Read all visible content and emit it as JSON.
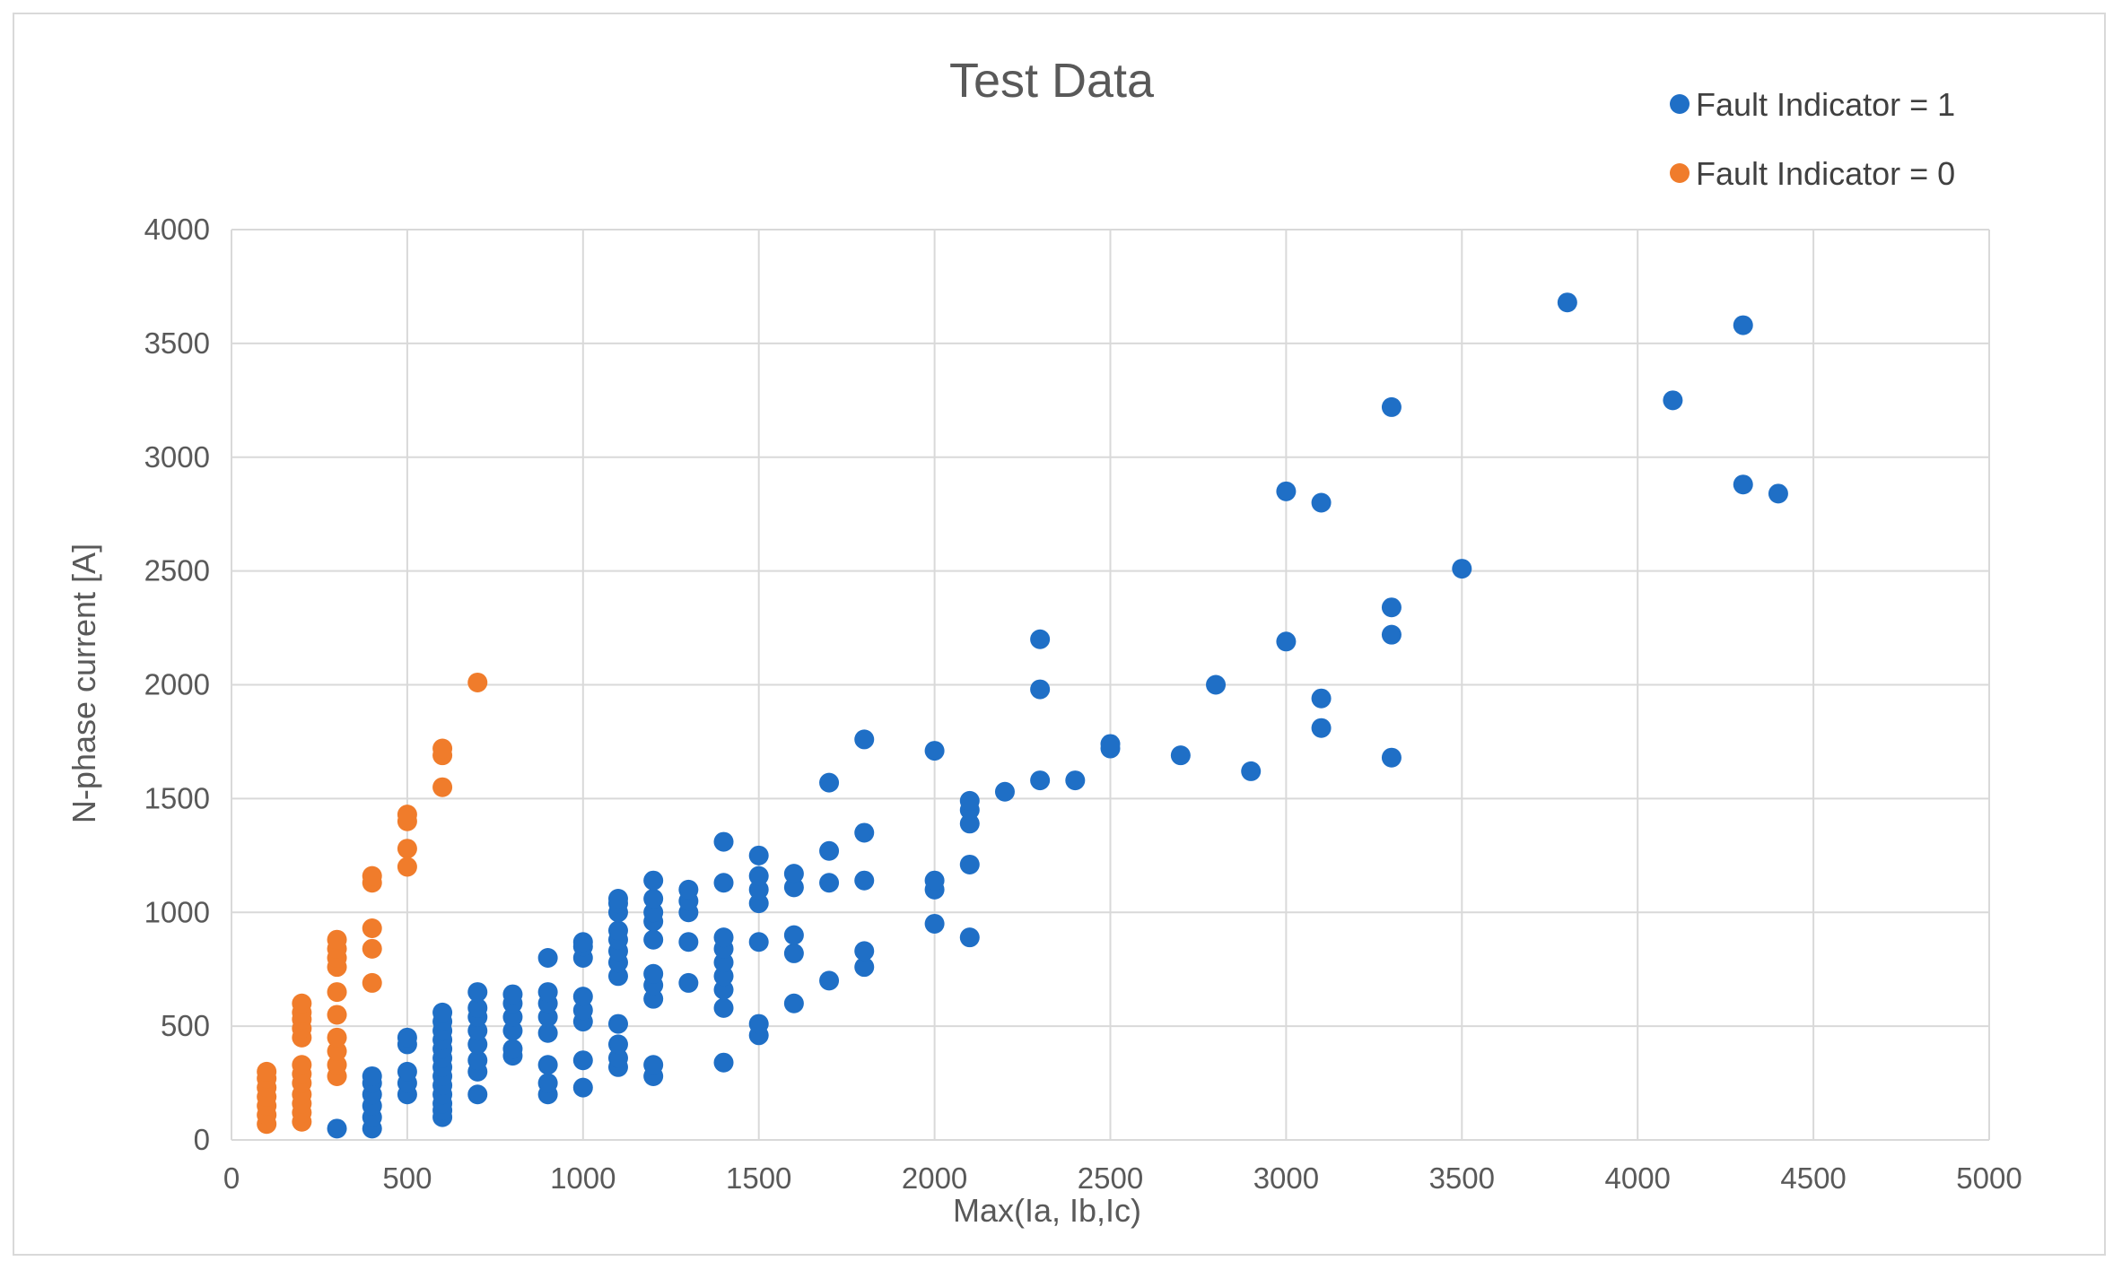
{
  "chart_data": {
    "type": "scatter",
    "title": "Test Data",
    "xlabel": "Max(Ia, Ib,Ic)",
    "ylabel": "N-phase current [A]",
    "xlim": [
      0,
      5000
    ],
    "ylim": [
      0,
      4000
    ],
    "x_ticks": [
      "0",
      "500",
      "1000",
      "1500",
      "2000",
      "2500",
      "3000",
      "3500",
      "4000",
      "4500",
      "5000"
    ],
    "y_ticks": [
      "0",
      "500",
      "1000",
      "1500",
      "2000",
      "2500",
      "3000",
      "3500",
      "4000"
    ],
    "grid": true,
    "legend_position": "top-right",
    "series": [
      {
        "name": "Fault Indicator = 1",
        "color": "#1f6fc6",
        "points": [
          [
            300,
            50
          ],
          [
            400,
            50
          ],
          [
            400,
            100
          ],
          [
            400,
            150
          ],
          [
            400,
            200
          ],
          [
            400,
            250
          ],
          [
            400,
            280
          ],
          [
            500,
            200
          ],
          [
            500,
            250
          ],
          [
            500,
            300
          ],
          [
            500,
            420
          ],
          [
            500,
            450
          ],
          [
            600,
            100
          ],
          [
            600,
            130
          ],
          [
            600,
            160
          ],
          [
            600,
            200
          ],
          [
            600,
            240
          ],
          [
            600,
            280
          ],
          [
            600,
            320
          ],
          [
            600,
            360
          ],
          [
            600,
            400
          ],
          [
            600,
            440
          ],
          [
            600,
            480
          ],
          [
            600,
            520
          ],
          [
            600,
            560
          ],
          [
            700,
            200
          ],
          [
            700,
            300
          ],
          [
            700,
            350
          ],
          [
            700,
            420
          ],
          [
            700,
            480
          ],
          [
            700,
            540
          ],
          [
            700,
            580
          ],
          [
            700,
            650
          ],
          [
            800,
            370
          ],
          [
            800,
            400
          ],
          [
            800,
            480
          ],
          [
            800,
            540
          ],
          [
            800,
            600
          ],
          [
            800,
            640
          ],
          [
            900,
            200
          ],
          [
            900,
            250
          ],
          [
            900,
            330
          ],
          [
            900,
            470
          ],
          [
            900,
            540
          ],
          [
            900,
            600
          ],
          [
            900,
            650
          ],
          [
            900,
            800
          ],
          [
            1000,
            230
          ],
          [
            1000,
            350
          ],
          [
            1000,
            520
          ],
          [
            1000,
            570
          ],
          [
            1000,
            630
          ],
          [
            1000,
            800
          ],
          [
            1000,
            850
          ],
          [
            1000,
            870
          ],
          [
            1100,
            320
          ],
          [
            1100,
            360
          ],
          [
            1100,
            420
          ],
          [
            1100,
            510
          ],
          [
            1100,
            720
          ],
          [
            1100,
            780
          ],
          [
            1100,
            830
          ],
          [
            1100,
            880
          ],
          [
            1100,
            920
          ],
          [
            1100,
            1000
          ],
          [
            1100,
            1040
          ],
          [
            1100,
            1060
          ],
          [
            1200,
            280
          ],
          [
            1200,
            330
          ],
          [
            1200,
            620
          ],
          [
            1200,
            680
          ],
          [
            1200,
            730
          ],
          [
            1200,
            880
          ],
          [
            1200,
            960
          ],
          [
            1200,
            1000
          ],
          [
            1200,
            1060
          ],
          [
            1200,
            1140
          ],
          [
            1300,
            690
          ],
          [
            1300,
            870
          ],
          [
            1300,
            1000
          ],
          [
            1300,
            1050
          ],
          [
            1300,
            1100
          ],
          [
            1400,
            340
          ],
          [
            1400,
            580
          ],
          [
            1400,
            660
          ],
          [
            1400,
            720
          ],
          [
            1400,
            780
          ],
          [
            1400,
            840
          ],
          [
            1400,
            890
          ],
          [
            1400,
            1130
          ],
          [
            1400,
            1310
          ],
          [
            1500,
            460
          ],
          [
            1500,
            510
          ],
          [
            1500,
            870
          ],
          [
            1500,
            1040
          ],
          [
            1500,
            1100
          ],
          [
            1500,
            1160
          ],
          [
            1500,
            1250
          ],
          [
            1600,
            600
          ],
          [
            1600,
            820
          ],
          [
            1600,
            900
          ],
          [
            1600,
            1110
          ],
          [
            1600,
            1170
          ],
          [
            1700,
            700
          ],
          [
            1700,
            1130
          ],
          [
            1700,
            1270
          ],
          [
            1700,
            1570
          ],
          [
            1800,
            760
          ],
          [
            1800,
            830
          ],
          [
            1800,
            1140
          ],
          [
            1800,
            1350
          ],
          [
            1800,
            1760
          ],
          [
            2000,
            950
          ],
          [
            2000,
            1100
          ],
          [
            2000,
            1140
          ],
          [
            2000,
            1710
          ],
          [
            2100,
            890
          ],
          [
            2100,
            1210
          ],
          [
            2100,
            1390
          ],
          [
            2100,
            1450
          ],
          [
            2100,
            1490
          ],
          [
            2200,
            1530
          ],
          [
            2300,
            1580
          ],
          [
            2300,
            1980
          ],
          [
            2300,
            2200
          ],
          [
            2400,
            1580
          ],
          [
            2500,
            1720
          ],
          [
            2500,
            1740
          ],
          [
            2700,
            1690
          ],
          [
            2800,
            2000
          ],
          [
            2900,
            1620
          ],
          [
            3000,
            2190
          ],
          [
            3000,
            2850
          ],
          [
            3100,
            1810
          ],
          [
            3100,
            1940
          ],
          [
            3100,
            2800
          ],
          [
            3300,
            1680
          ],
          [
            3300,
            2220
          ],
          [
            3300,
            2340
          ],
          [
            3300,
            3220
          ],
          [
            3500,
            2510
          ],
          [
            3800,
            3680
          ],
          [
            4100,
            3250
          ],
          [
            4300,
            2880
          ],
          [
            4300,
            3580
          ],
          [
            4400,
            2840
          ]
        ]
      },
      {
        "name": "Fault Indicator = 0",
        "color": "#f07c2b",
        "points": [
          [
            100,
            70
          ],
          [
            100,
            110
          ],
          [
            100,
            150
          ],
          [
            100,
            190
          ],
          [
            100,
            230
          ],
          [
            100,
            270
          ],
          [
            100,
            300
          ],
          [
            200,
            80
          ],
          [
            200,
            120
          ],
          [
            200,
            160
          ],
          [
            200,
            200
          ],
          [
            200,
            250
          ],
          [
            200,
            290
          ],
          [
            200,
            330
          ],
          [
            200,
            450
          ],
          [
            200,
            490
          ],
          [
            200,
            530
          ],
          [
            200,
            560
          ],
          [
            200,
            600
          ],
          [
            300,
            280
          ],
          [
            300,
            330
          ],
          [
            300,
            390
          ],
          [
            300,
            450
          ],
          [
            300,
            550
          ],
          [
            300,
            650
          ],
          [
            300,
            760
          ],
          [
            300,
            800
          ],
          [
            300,
            840
          ],
          [
            300,
            880
          ],
          [
            400,
            690
          ],
          [
            400,
            840
          ],
          [
            400,
            930
          ],
          [
            400,
            1130
          ],
          [
            400,
            1160
          ],
          [
            500,
            1200
          ],
          [
            500,
            1280
          ],
          [
            500,
            1400
          ],
          [
            500,
            1430
          ],
          [
            600,
            1550
          ],
          [
            600,
            1690
          ],
          [
            600,
            1720
          ],
          [
            700,
            2010
          ]
        ]
      }
    ]
  }
}
